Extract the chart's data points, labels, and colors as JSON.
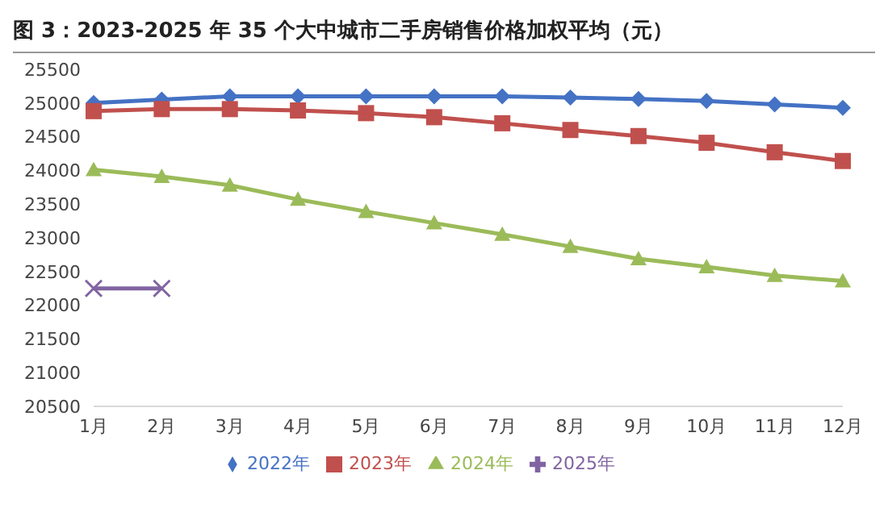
{
  "chart_data": {
    "type": "line",
    "title": "图 3：2023-2025 年 35 个大中城市二手房销售价格加权平均（元）",
    "categories": [
      "1月",
      "2月",
      "3月",
      "4月",
      "5月",
      "6月",
      "7月",
      "8月",
      "9月",
      "10月",
      "11月",
      "12月"
    ],
    "ylim": [
      20500,
      25500
    ],
    "yticks": [
      20500,
      21000,
      21500,
      22000,
      22500,
      23000,
      23500,
      24000,
      24500,
      25000,
      25500
    ],
    "grid": false,
    "legend": "bottom",
    "series": [
      {
        "name": "2022年",
        "color": "#4472c4",
        "marker": "diamond",
        "values": [
          25000,
          25050,
          25100,
          25100,
          25100,
          25100,
          25100,
          25080,
          25060,
          25030,
          24980,
          24930
        ]
      },
      {
        "name": "2023年",
        "color": "#c0504d",
        "marker": "square",
        "values": [
          24880,
          24910,
          24910,
          24890,
          24850,
          24790,
          24700,
          24600,
          24510,
          24410,
          24270,
          24140
        ]
      },
      {
        "name": "2024年",
        "color": "#9bbb59",
        "marker": "triangle",
        "values": [
          24010,
          23910,
          23780,
          23570,
          23390,
          23220,
          23050,
          22870,
          22690,
          22570,
          22440,
          22360
        ]
      },
      {
        "name": "2025年",
        "color": "#8064a2",
        "marker": "cross",
        "values": [
          22250,
          22250,
          null,
          null,
          null,
          null,
          null,
          null,
          null,
          null,
          null,
          null
        ]
      }
    ]
  }
}
